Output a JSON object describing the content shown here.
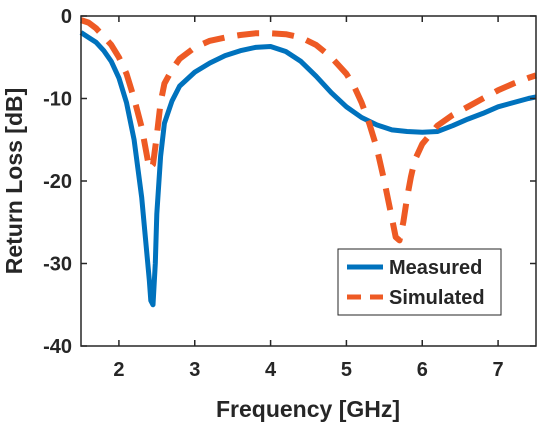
{
  "chart_data": {
    "type": "line",
    "title": "",
    "xlabel": "Frequency [GHz]",
    "ylabel": "Return Loss [dB]",
    "xlim": [
      1.5,
      7.5
    ],
    "ylim": [
      -40,
      0
    ],
    "xticks": [
      2,
      3,
      4,
      5,
      6,
      7
    ],
    "yticks": [
      0,
      -10,
      -20,
      -30,
      -40
    ],
    "grid": false,
    "legend_position": "bottom-right",
    "series": [
      {
        "name": "Measured",
        "color": "#0072BD",
        "style": "solid",
        "x": [
          1.5,
          1.6,
          1.7,
          1.8,
          1.9,
          2.0,
          2.1,
          2.2,
          2.25,
          2.3,
          2.35,
          2.4,
          2.42,
          2.45,
          2.48,
          2.5,
          2.55,
          2.6,
          2.7,
          2.8,
          3.0,
          3.2,
          3.4,
          3.6,
          3.8,
          4.0,
          4.2,
          4.4,
          4.6,
          4.8,
          5.0,
          5.2,
          5.4,
          5.6,
          5.8,
          6.0,
          6.2,
          6.4,
          6.6,
          6.8,
          7.0,
          7.2,
          7.4,
          7.5
        ],
        "y": [
          -2,
          -2.6,
          -3.2,
          -4.2,
          -5.5,
          -7.5,
          -10.5,
          -15,
          -18.5,
          -22,
          -27,
          -32,
          -34.5,
          -35,
          -30,
          -24,
          -17,
          -13,
          -10.3,
          -8.5,
          -6.8,
          -5.7,
          -4.8,
          -4.2,
          -3.8,
          -3.7,
          -4.3,
          -5.5,
          -7.3,
          -9.3,
          -11,
          -12.3,
          -13.2,
          -13.8,
          -14,
          -14.1,
          -14,
          -13.3,
          -12.5,
          -11.8,
          -11,
          -10.5,
          -10,
          -9.8
        ]
      },
      {
        "name": "Simulated",
        "color": "#EE5A24",
        "style": "dashed",
        "x": [
          1.5,
          1.6,
          1.7,
          1.8,
          1.9,
          2.0,
          2.1,
          2.2,
          2.3,
          2.35,
          2.4,
          2.45,
          2.5,
          2.55,
          2.6,
          2.7,
          2.8,
          3.0,
          3.2,
          3.4,
          3.6,
          3.8,
          4.0,
          4.2,
          4.4,
          4.6,
          4.8,
          5.0,
          5.1,
          5.2,
          5.3,
          5.4,
          5.5,
          5.6,
          5.65,
          5.7,
          5.75,
          5.8,
          5.85,
          5.9,
          6.0,
          6.2,
          6.4,
          6.6,
          6.8,
          7.0,
          7.2,
          7.4,
          7.5
        ],
        "y": [
          -0.5,
          -0.8,
          -1.5,
          -2.5,
          -3.5,
          -5,
          -7,
          -10,
          -13.5,
          -16,
          -18.5,
          -18,
          -14.5,
          -10.5,
          -8.2,
          -6.5,
          -5.2,
          -3.8,
          -3,
          -2.6,
          -2.3,
          -2.1,
          -2.1,
          -2.2,
          -2.6,
          -3.5,
          -5,
          -7,
          -8.5,
          -10.5,
          -13,
          -16,
          -20,
          -24.5,
          -26.8,
          -27.2,
          -25,
          -22,
          -19.5,
          -17.5,
          -15.5,
          -13.3,
          -12,
          -11,
          -10,
          -9,
          -8.2,
          -7.5,
          -7.2
        ]
      }
    ]
  }
}
